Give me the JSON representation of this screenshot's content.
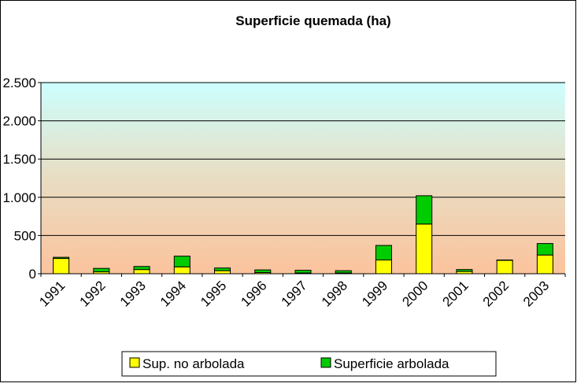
{
  "chart_data": {
    "type": "stacked_bar",
    "title": "Superficie quemada (ha)",
    "categories": [
      "1991",
      "1992",
      "1993",
      "1994",
      "1995",
      "1996",
      "1997",
      "1998",
      "1999",
      "2000",
      "2001",
      "2002",
      "2003"
    ],
    "series": [
      {
        "name": "Sup. no arbolada",
        "color": "#ffff00",
        "values": [
          200,
          25,
          55,
          90,
          40,
          15,
          10,
          10,
          180,
          650,
          30,
          175,
          245
        ]
      },
      {
        "name": "Superficie arbolada",
        "color": "#00cc00",
        "values": [
          15,
          45,
          40,
          140,
          35,
          35,
          35,
          30,
          190,
          370,
          25,
          5,
          150
        ]
      }
    ],
    "ylim": [
      0,
      2500
    ],
    "yticks": [
      0,
      500,
      {
        "value": 1000,
        "label": "1.000"
      },
      {
        "value": 1500,
        "label": "1.500"
      },
      {
        "value": 2000,
        "label": "2.000"
      },
      {
        "value": 2500,
        "label": "2.500"
      }
    ],
    "grid": true,
    "legend": "bottom"
  }
}
